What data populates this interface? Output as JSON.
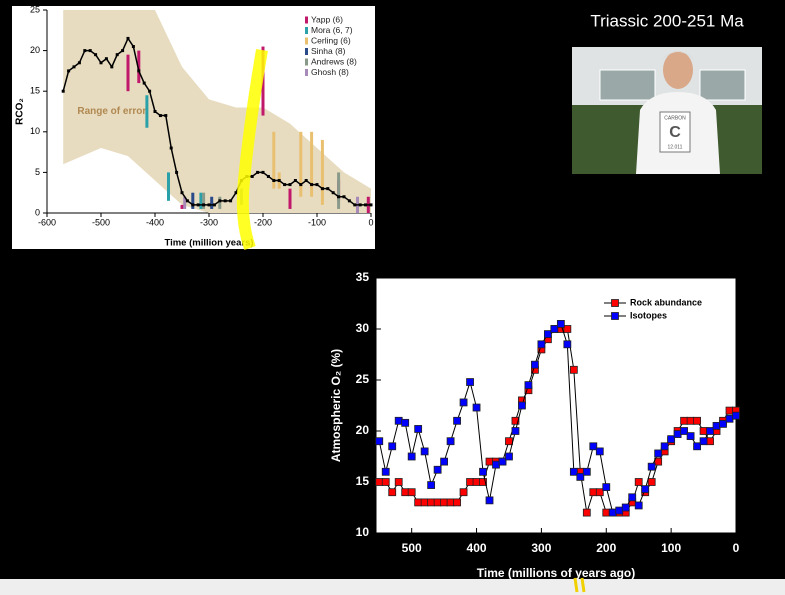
{
  "slide": {
    "title": "Triassic 200-251 Ma",
    "photo_shirt": [
      "CARBON",
      "C",
      "12.011"
    ]
  },
  "chart_data": [
    {
      "type": "line",
      "xlabel": "Time (million years)",
      "ylabel": "RCO₂",
      "annotation": "Range of error",
      "xlim": [
        -600,
        0
      ],
      "ylim": [
        0,
        25
      ],
      "xticks": [
        -600,
        -500,
        -400,
        -300,
        -200,
        -100,
        0
      ],
      "yticks": [
        0,
        5,
        10,
        15,
        20,
        25
      ],
      "legend": "upper right",
      "color": "#000000",
      "x": [
        -570,
        -560,
        -550,
        -540,
        -530,
        -520,
        -510,
        -500,
        -490,
        -480,
        -470,
        -460,
        -450,
        -440,
        -430,
        -420,
        -410,
        -400,
        -390,
        -380,
        -370,
        -360,
        -350,
        -340,
        -330,
        -320,
        -310,
        -300,
        -290,
        -280,
        -270,
        -260,
        -250,
        -240,
        -230,
        -220,
        -210,
        -200,
        -190,
        -180,
        -170,
        -160,
        -150,
        -140,
        -130,
        -120,
        -110,
        -100,
        -90,
        -80,
        -70,
        -60,
        -50,
        -40,
        -30,
        -20,
        -10,
        0
      ],
      "values": [
        15,
        17.5,
        18,
        18.5,
        20,
        20,
        19.5,
        18.5,
        19,
        18,
        19.5,
        20,
        21.5,
        20.5,
        17.5,
        16,
        15,
        12.5,
        12,
        12,
        8,
        5,
        2.5,
        1.5,
        1,
        1,
        1,
        1,
        1,
        1.5,
        1.5,
        1.5,
        2.5,
        4,
        4.5,
        4.5,
        5,
        5,
        4.5,
        4,
        4,
        3.5,
        3.5,
        4,
        3.5,
        4,
        3.5,
        3.5,
        3,
        3,
        2.5,
        2,
        2,
        1.5,
        1,
        1,
        1,
        1
      ],
      "error_band": {
        "color": "#e8dcc0",
        "x": [
          -570,
          -500,
          -450,
          -400,
          -350,
          -300,
          -250,
          -200,
          -150,
          -100,
          -50,
          0
        ],
        "lower": [
          6,
          8,
          7,
          4,
          1,
          0,
          0,
          0,
          0,
          0,
          0,
          0
        ],
        "upper": [
          25,
          25,
          25,
          25,
          18,
          14,
          13,
          13,
          11,
          8,
          5,
          3
        ]
      },
      "proxies": [
        {
          "name": "Yapp (6)",
          "color": "#c0186a",
          "x": [
            -450,
            -430,
            -350,
            -200,
            -150,
            -60,
            -5
          ],
          "low": [
            15,
            16,
            0.5,
            12,
            0.5,
            1.5,
            0
          ],
          "high": [
            19.5,
            20,
            1,
            20.5,
            3,
            4,
            2
          ]
        },
        {
          "name": "Mora (6, 7)",
          "color": "#2aa0a8",
          "x": [
            -415,
            -375,
            -315
          ],
          "low": [
            10.5,
            1.5,
            0.5
          ],
          "high": [
            14.5,
            5,
            2.5
          ]
        },
        {
          "name": "Cerling (6)",
          "color": "#e8c070",
          "x": [
            -180,
            -170,
            -130,
            -110,
            -90
          ],
          "low": [
            3,
            3,
            2,
            2,
            1
          ],
          "high": [
            10,
            5,
            10,
            10,
            9
          ]
        },
        {
          "name": "Sinha (8)",
          "color": "#2a4a8a",
          "x": [
            -330,
            -295
          ],
          "low": [
            0.5,
            0.5
          ],
          "high": [
            2.5,
            2
          ]
        },
        {
          "name": "Andrews (8)",
          "color": "#8a9a8a",
          "x": [
            -310,
            -280,
            -240,
            -60
          ],
          "low": [
            0.5,
            0.5,
            1,
            0.5
          ],
          "high": [
            2.5,
            2,
            3,
            5
          ]
        },
        {
          "name": "Ghosh (8)",
          "color": "#a88ab8",
          "x": [
            -345,
            -25
          ],
          "low": [
            0.5,
            0
          ],
          "high": [
            2,
            2
          ]
        }
      ]
    },
    {
      "type": "line",
      "xlabel": "Time (millions of years ago)",
      "ylabel": "Atmospheric O₂ (%)",
      "xlim": [
        555,
        0
      ],
      "ylim": [
        10,
        35
      ],
      "xticks": [
        500,
        400,
        300,
        200,
        100,
        0
      ],
      "yticks": [
        10,
        15,
        20,
        25,
        30,
        35
      ],
      "legend": "upper right",
      "x": [
        550,
        540,
        530,
        520,
        510,
        500,
        490,
        480,
        470,
        460,
        450,
        440,
        430,
        420,
        410,
        400,
        390,
        380,
        370,
        360,
        350,
        340,
        330,
        320,
        310,
        300,
        290,
        280,
        270,
        260,
        250,
        240,
        230,
        220,
        210,
        200,
        190,
        180,
        170,
        160,
        150,
        140,
        130,
        120,
        110,
        100,
        90,
        80,
        70,
        60,
        50,
        40,
        30,
        20,
        10,
        0
      ],
      "series": [
        {
          "name": "Rock abundance",
          "color": "#ff0000",
          "values": [
            15,
            15,
            14,
            15,
            14,
            14,
            13,
            13,
            13,
            13,
            13,
            13,
            13,
            14,
            15,
            15,
            15,
            17,
            17,
            17,
            19,
            21,
            23,
            24,
            26,
            28,
            29,
            30,
            30,
            30,
            26,
            16,
            12,
            14,
            14,
            12,
            12,
            12,
            12,
            13,
            15,
            14,
            15,
            17,
            18,
            19,
            20,
            21,
            21,
            21,
            20,
            19,
            20,
            21,
            22,
            22
          ]
        },
        {
          "name": "Isotopes",
          "color": "#0000ff",
          "values": [
            19,
            16,
            18.5,
            21,
            20.8,
            17.5,
            20.2,
            18,
            14.7,
            16.2,
            17,
            19,
            21,
            22.8,
            24.8,
            22.3,
            16,
            13.2,
            16.7,
            17,
            17.5,
            20,
            22.5,
            24.5,
            26.5,
            28.5,
            29.5,
            30,
            30.5,
            28.5,
            16,
            15.5,
            16,
            18.5,
            18,
            14.5,
            12,
            12.2,
            12.5,
            13.5,
            12.7,
            14.3,
            16.5,
            17.8,
            18.5,
            19.2,
            19.7,
            20,
            19.5,
            18.5,
            19,
            20,
            20.5,
            20.7,
            21.2,
            21.5
          ]
        }
      ]
    }
  ]
}
